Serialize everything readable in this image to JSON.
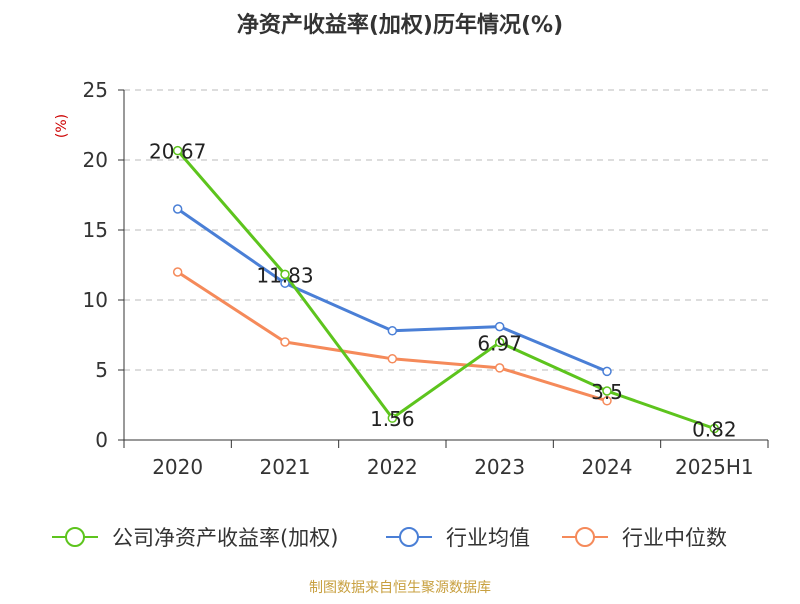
{
  "chart_data": {
    "type": "line",
    "title": "净资产收益率(加权)历年情况(%)",
    "ylabel": "(%)",
    "xlabel": "",
    "categories": [
      "2020",
      "2021",
      "2022",
      "2023",
      "2024",
      "2025H1"
    ],
    "ylim": [
      0,
      25
    ],
    "yticks": [
      0,
      5,
      10,
      15,
      20,
      25
    ],
    "grid": true,
    "legend_position": "bottom",
    "series": [
      {
        "name": "公司净资产收益率(加权)",
        "color": "#5dc41d",
        "values": [
          20.67,
          11.83,
          1.56,
          6.97,
          3.5,
          0.82
        ],
        "data_labels": [
          "20.67",
          "11.83",
          "1.56",
          "6.97",
          "3.5",
          "0.82"
        ]
      },
      {
        "name": "行业均值",
        "color": "#4a7fd6",
        "values": [
          16.5,
          11.2,
          7.8,
          8.1,
          4.9,
          null
        ]
      },
      {
        "name": "行业中位数",
        "color": "#f58a5a",
        "values": [
          12.0,
          7.0,
          5.8,
          5.15,
          2.8,
          null
        ]
      }
    ],
    "source": "制图数据来自恒生聚源数据库"
  }
}
